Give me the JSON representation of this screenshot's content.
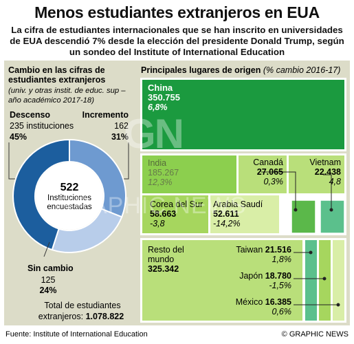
{
  "header": {
    "title": "Menos estudiantes extranjeros en EUA",
    "subtitle": "La cifra de estudiantes internacionales que se han inscrito en universidades de EUA descendió 7% desde la elección del presidente Donald Trump, según un sondeo del Institute of International Education"
  },
  "left": {
    "heading": "Cambio en las cifras de estudiantes extranjeros",
    "note": "(univ. y otras instit. de educ. sup – año académico 2017-18)",
    "descenso": {
      "label": "Descenso",
      "count": "235 instituciones",
      "pct": "45%"
    },
    "incremento": {
      "label": "Incremento",
      "count": "162",
      "pct": "31%"
    },
    "sin_cambio": {
      "label": "Sin cambio",
      "count": "125",
      "pct": "24%"
    },
    "center_value": "522",
    "center_label_1": "Instituciones",
    "center_label_2": "encuestadas",
    "total_label_1": "Total de estudiantes",
    "total_label_2": "extranjeros:",
    "total_value": "1.078.822"
  },
  "right": {
    "heading": "Principales lugares de origen",
    "heading_note": "(% cambio 2016-17)"
  },
  "footer": {
    "source": "Fuente: Institute of International Education",
    "credit": "© GRAPHIC NEWS"
  },
  "watermark": {
    "logo": "GN",
    "text": "GRAPHIC NEWS"
  },
  "colors": {
    "panel": "#dcdcc8",
    "descenso": "#1c5e9e",
    "incremento": "#6e9ad0",
    "sin_cambio": "#b8cdea",
    "china": "#1b9a3f",
    "india": "#8ccf4e",
    "korea": "#a6d65e",
    "resto": "#b9df7a",
    "teal": "#5bc08c",
    "pale": "#d9eea7"
  },
  "chart_data": [
    {
      "type": "pie",
      "title": "Cambio en las cifras de estudiantes extranjeros",
      "categories": [
        "Descenso",
        "Incremento",
        "Sin cambio"
      ],
      "values": [
        235,
        162,
        125
      ],
      "percentages": [
        45,
        31,
        24
      ],
      "total": 522
    },
    {
      "type": "treemap",
      "title": "Principales lugares de origen",
      "subtitle": "(% cambio 2016-17)",
      "items": [
        {
          "name": "China",
          "value": "350.755",
          "change": "6,8%"
        },
        {
          "name": "India",
          "value": "185.267",
          "change": "12,3%"
        },
        {
          "name": "Canadá",
          "value": "27.065",
          "change": "0,3%"
        },
        {
          "name": "Vietnam",
          "value": "22.438",
          "change": "4,8"
        },
        {
          "name": "Corea del Sur",
          "value": "58.663",
          "change": "-3,8"
        },
        {
          "name": "Arabia Saudí",
          "value": "52.611",
          "change": "-14,2%"
        },
        {
          "name": "Resto del mundo",
          "value": "325.342",
          "change": ""
        },
        {
          "name": "Taiwan",
          "value": "21.516",
          "change": "1,8%"
        },
        {
          "name": "Japón",
          "value": "18.780",
          "change": "-1,5%"
        },
        {
          "name": "México",
          "value": "16.385",
          "change": "0,6%"
        }
      ]
    }
  ]
}
